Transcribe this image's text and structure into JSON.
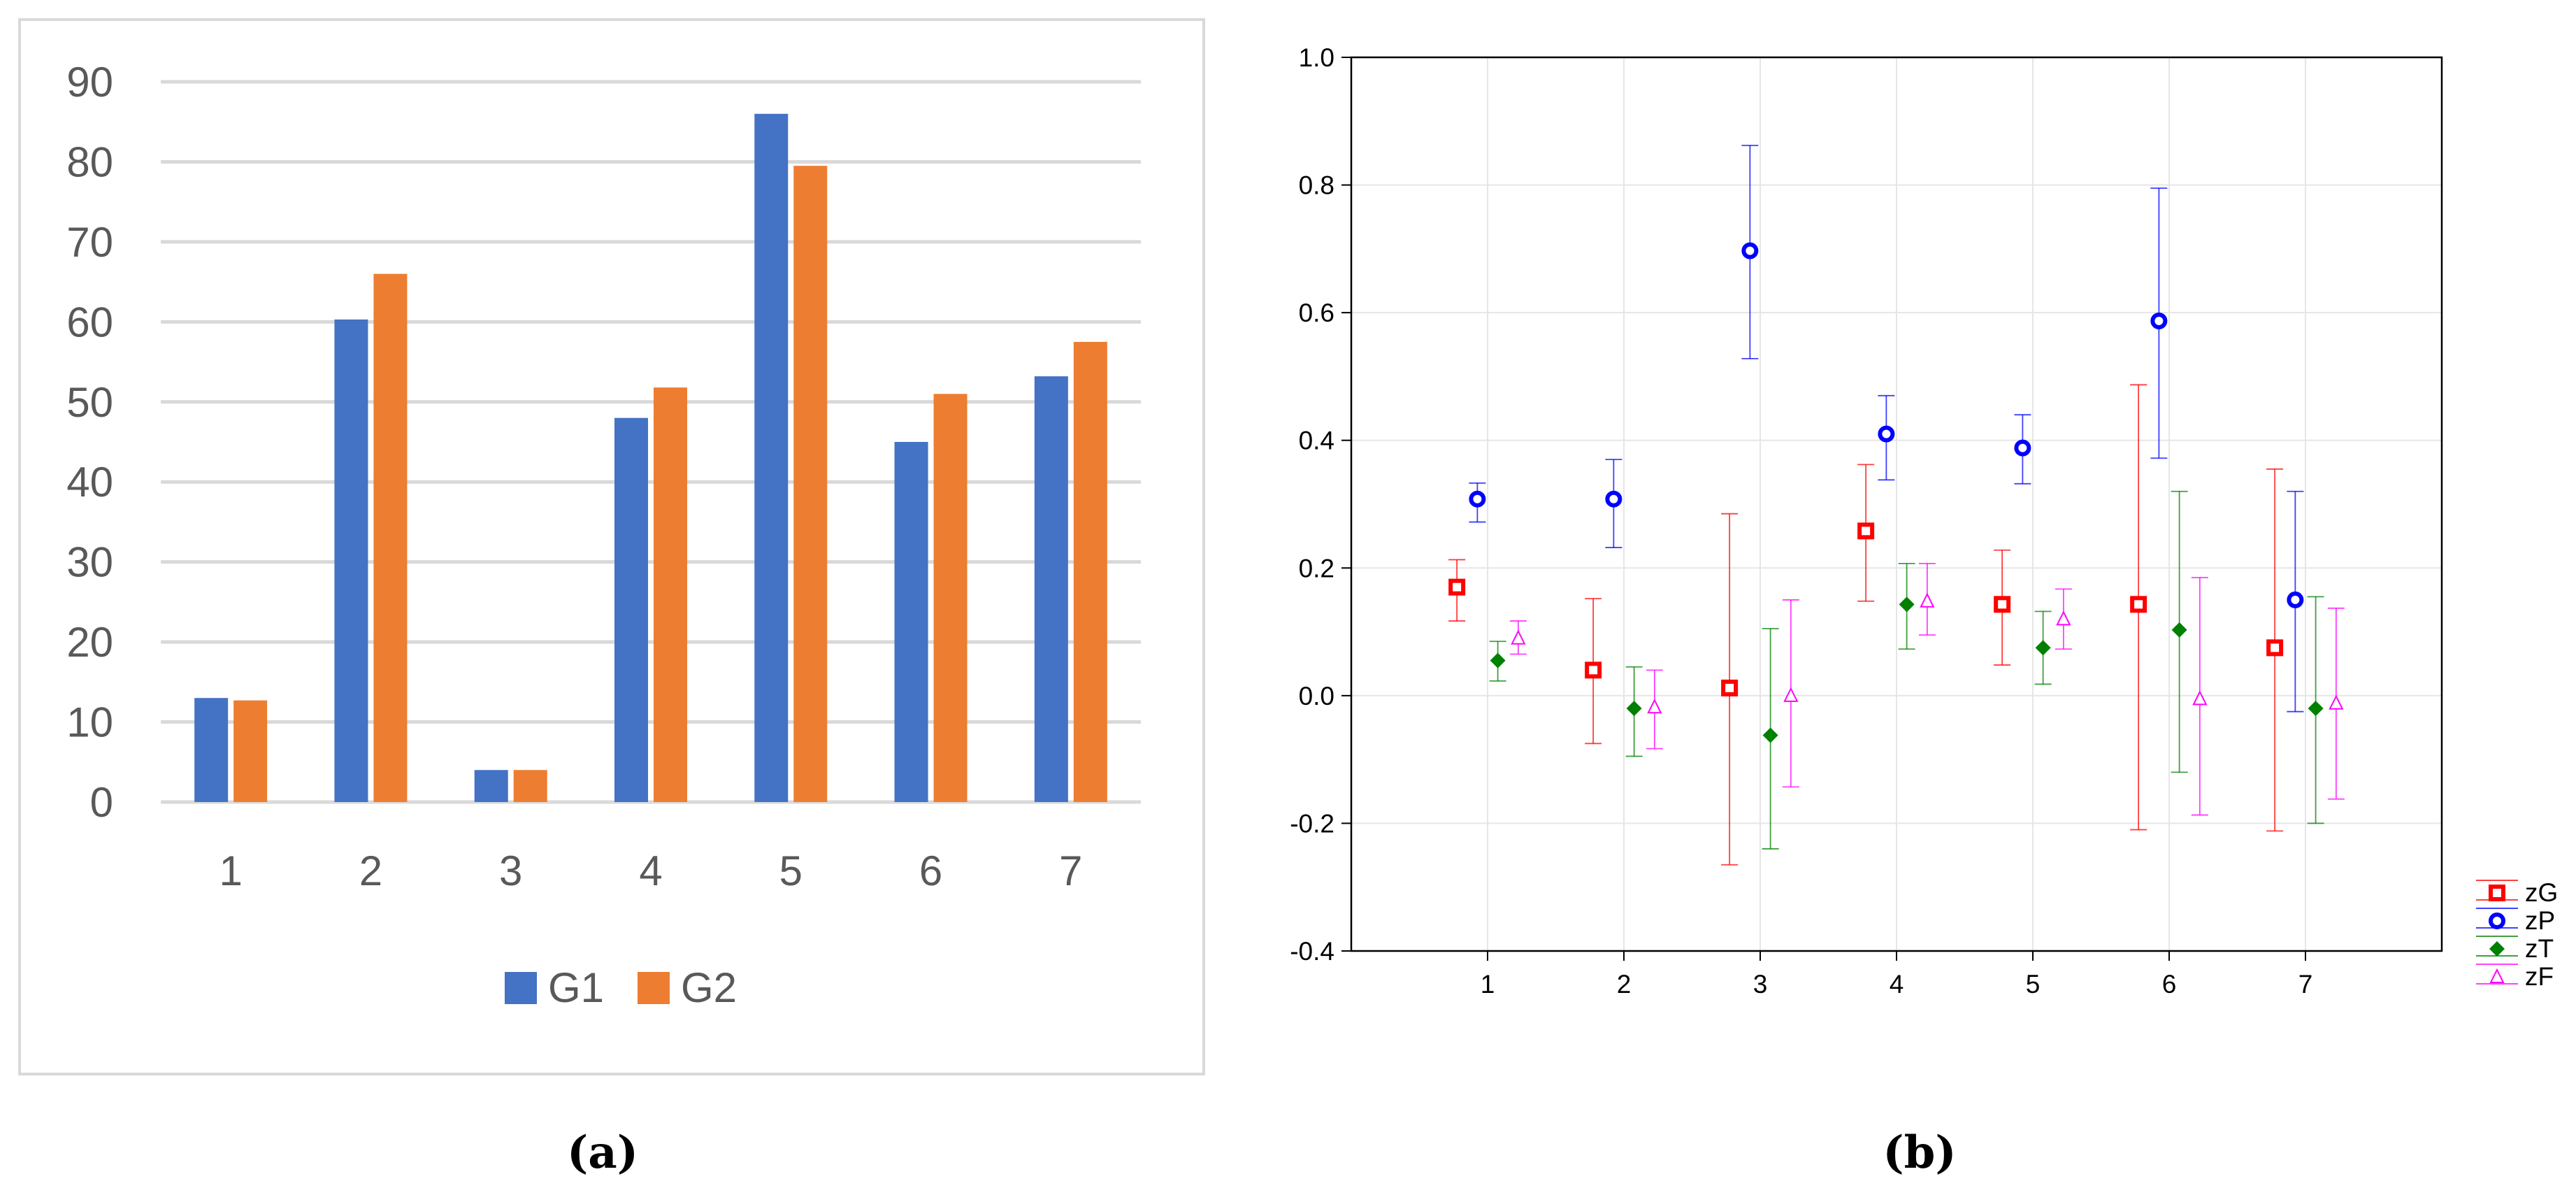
{
  "figure_labels": {
    "a": "(a)",
    "b": "(b)"
  },
  "chart_data": [
    {
      "type": "bar",
      "categories": [
        "1",
        "2",
        "3",
        "4",
        "5",
        "6",
        "7"
      ],
      "series": [
        {
          "name": "G1",
          "color": "#4472c4",
          "values": [
            13,
            60.3,
            4,
            48,
            86,
            45,
            53.2
          ]
        },
        {
          "name": "G2",
          "color": "#ed7d31",
          "values": [
            12.7,
            66,
            4,
            51.8,
            79.5,
            51,
            57.5
          ]
        }
      ],
      "ylim": [
        0,
        90
      ],
      "yticks": [
        "0",
        "10",
        "20",
        "30",
        "40",
        "50",
        "60",
        "70",
        "80",
        "90"
      ],
      "grid": true,
      "legend": "bottom",
      "label": "(a)"
    },
    {
      "type": "scatter",
      "subtype": "error-bar",
      "categories": [
        "1",
        "2",
        "3",
        "4",
        "5",
        "6",
        "7"
      ],
      "ylim": [
        -0.4,
        1.0
      ],
      "yticks": [
        "-0.4",
        "-0.2",
        "0.0",
        "0.2",
        "0.4",
        "0.6",
        "0.8",
        "1.0"
      ],
      "grid": true,
      "legend": "right",
      "series": [
        {
          "name": "zG",
          "color": "#ff0000",
          "marker": "square",
          "values": [
            0.17,
            0.04,
            0.012,
            0.258,
            0.143,
            0.143,
            0.075
          ],
          "lower": [
            0.117,
            -0.075,
            -0.265,
            0.148,
            0.048,
            -0.21,
            -0.212
          ],
          "upper": [
            0.213,
            0.152,
            0.285,
            0.362,
            0.228,
            0.487,
            0.355
          ]
        },
        {
          "name": "zP",
          "color": "#0000ff",
          "marker": "circle",
          "values": [
            0.308,
            0.308,
            0.697,
            0.41,
            0.388,
            0.587,
            0.15
          ],
          "lower": [
            0.272,
            0.232,
            0.528,
            0.338,
            0.332,
            0.372,
            -0.025
          ],
          "upper": [
            0.333,
            0.37,
            0.862,
            0.47,
            0.44,
            0.795,
            0.32
          ]
        },
        {
          "name": "zT",
          "color": "#008000",
          "marker": "diamond",
          "values": [
            0.055,
            -0.02,
            -0.062,
            0.143,
            0.075,
            0.103,
            -0.02
          ],
          "lower": [
            0.023,
            -0.095,
            -0.24,
            0.073,
            0.018,
            -0.12,
            -0.2
          ],
          "upper": [
            0.085,
            0.045,
            0.105,
            0.207,
            0.132,
            0.32,
            0.155
          ]
        },
        {
          "name": "zF",
          "color": "#ff00ff",
          "marker": "triangle",
          "values": [
            0.09,
            -0.018,
            0.0,
            0.148,
            0.12,
            -0.005,
            -0.012
          ],
          "lower": [
            0.065,
            -0.083,
            -0.143,
            0.095,
            0.073,
            -0.187,
            -0.162
          ],
          "upper": [
            0.117,
            0.04,
            0.15,
            0.207,
            0.167,
            0.185,
            0.137
          ]
        }
      ],
      "label": "(b)"
    }
  ]
}
